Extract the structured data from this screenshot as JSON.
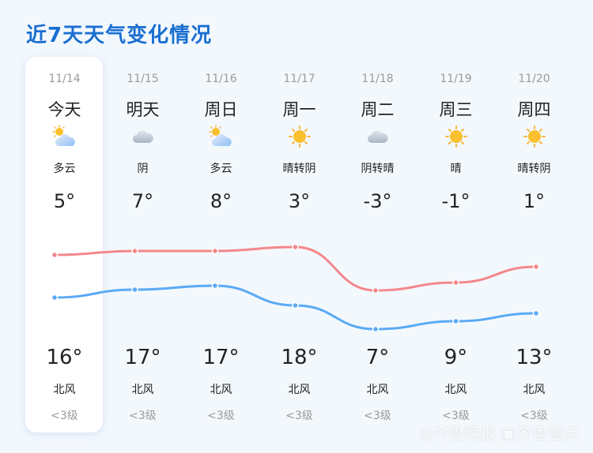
{
  "title": "近7天天气变化情况",
  "days": [
    {
      "date": "11/14",
      "day": "今天",
      "icon": "partly-cloudy-icon",
      "cond": "多云",
      "low": "5°",
      "high": "16°",
      "wind": "北风",
      "level": "<3级"
    },
    {
      "date": "11/15",
      "day": "明天",
      "icon": "cloud-icon",
      "cond": "阴",
      "low": "7°",
      "high": "17°",
      "wind": "北风",
      "level": "<3级"
    },
    {
      "date": "11/16",
      "day": "周日",
      "icon": "partly-cloudy-icon",
      "cond": "多云",
      "low": "8°",
      "high": "17°",
      "wind": "北风",
      "level": "<3级"
    },
    {
      "date": "11/17",
      "day": "周一",
      "icon": "sun-icon",
      "cond": "晴转阴",
      "low": "3°",
      "high": "18°",
      "wind": "北风",
      "level": "<3级"
    },
    {
      "date": "11/18",
      "day": "周二",
      "icon": "cloud-icon",
      "cond": "阴转晴",
      "low": "-3°",
      "high": "7°",
      "wind": "北风",
      "level": "<3级"
    },
    {
      "date": "11/19",
      "day": "周三",
      "icon": "sun-icon",
      "cond": "晴",
      "low": "-1°",
      "high": "9°",
      "wind": "北风",
      "level": "<3级"
    },
    {
      "date": "11/20",
      "day": "周四",
      "icon": "sun-icon",
      "cond": "晴转阴",
      "low": "1°",
      "high": "13°",
      "wind": "北风",
      "level": "<3级"
    }
  ],
  "chart_data": {
    "type": "line",
    "categories": [
      "11/14",
      "11/15",
      "11/16",
      "11/17",
      "11/18",
      "11/19",
      "11/20"
    ],
    "series": [
      {
        "values": [
          16,
          17,
          17,
          18,
          7,
          9,
          13
        ],
        "color": "#f4878b"
      },
      {
        "values": [
          5,
          7,
          8,
          3,
          -3,
          -1,
          1
        ],
        "color": "#5aaaf5"
      }
    ]
  },
  "watermark": "齐鲁晚报 齐鲁壹点"
}
